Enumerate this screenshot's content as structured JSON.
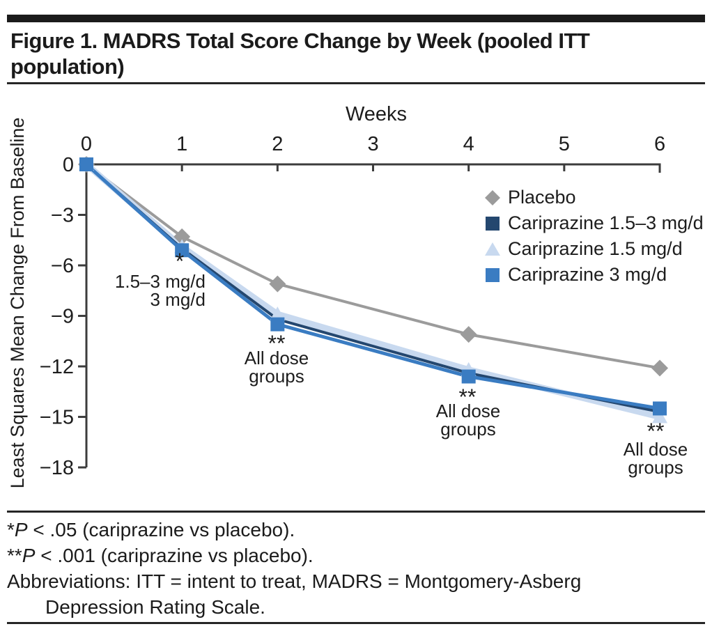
{
  "figure": {
    "title": "Figure 1. MADRS Total Score Change by Week (pooled ITT population)"
  },
  "chart_data": {
    "type": "line",
    "x_axis_title": "Weeks",
    "y_axis_title": "Least Squares Mean Change From Baseline",
    "x_ticks": [
      0,
      1,
      2,
      3,
      4,
      5,
      6
    ],
    "y_ticks": [
      0,
      -3,
      -6,
      -9,
      -12,
      -15,
      -18
    ],
    "y_tick_labels": [
      "0",
      "−3",
      "−6",
      "−9",
      "−12",
      "−15",
      "−18"
    ],
    "xlim": [
      0,
      6
    ],
    "ylim": [
      -18,
      0
    ],
    "grid": false,
    "legend_position": "upper right inside",
    "weeks": [
      0,
      1,
      2,
      4,
      6
    ],
    "series": [
      {
        "name": "Placebo",
        "marker": "diamond",
        "color": "#9b9b9b",
        "markers_visible": true,
        "values": [
          0,
          -4.3,
          -7.1,
          -10.1,
          -12.1
        ]
      },
      {
        "name": "Cariprazine 1.5 mg/d",
        "marker": "triangle",
        "color": "#c8d9ef",
        "markers_visible": true,
        "values": [
          0,
          -4.9,
          -8.9,
          -12.2,
          -15.0
        ]
      },
      {
        "name": "Cariprazine 1.5–3 mg/d",
        "marker": "square",
        "color": "#24476f",
        "markers_visible": false,
        "values": [
          0,
          -5.0,
          -9.2,
          -12.4,
          -14.7
        ]
      },
      {
        "name": "Cariprazine 3 mg/d",
        "marker": "square",
        "color": "#3a7cc2",
        "markers_visible": true,
        "values": [
          0,
          -5.1,
          -9.5,
          -12.6,
          -14.5
        ]
      }
    ],
    "annotations": [
      {
        "week": 1,
        "sig": "*",
        "note_lines": [
          "1.5–3 mg/d",
          "3 mg/d"
        ]
      },
      {
        "week": 2,
        "sig": "**",
        "note_lines": [
          "All dose",
          "groups"
        ]
      },
      {
        "week": 4,
        "sig": "**",
        "note_lines": [
          "All dose",
          "groups"
        ]
      },
      {
        "week": 6,
        "sig": "**",
        "note_lines": [
          "All dose",
          "groups"
        ]
      }
    ]
  },
  "legend": {
    "items": [
      {
        "label": "Placebo",
        "marker": "diamond",
        "color": "#9b9b9b"
      },
      {
        "label": "Cariprazine 1.5–3 mg/d",
        "marker": "square",
        "color": "#24476f"
      },
      {
        "label": "Cariprazine 1.5 mg/d",
        "marker": "triangle",
        "color": "#c8d9ef"
      },
      {
        "label": "Cariprazine 3 mg/d",
        "marker": "square",
        "color": "#3a7cc2"
      }
    ]
  },
  "footnotes": {
    "line1": {
      "marker": "*",
      "p": "P",
      "rest": " < .05 (cariprazine vs placebo)."
    },
    "line2": {
      "marker": "**",
      "p": "P",
      "rest": " < .001 (cariprazine vs placebo)."
    },
    "line3": "Abbreviations: ITT = intent to treat, MADRS = Montgomery-Asberg",
    "line4": "Depression Rating Scale."
  }
}
